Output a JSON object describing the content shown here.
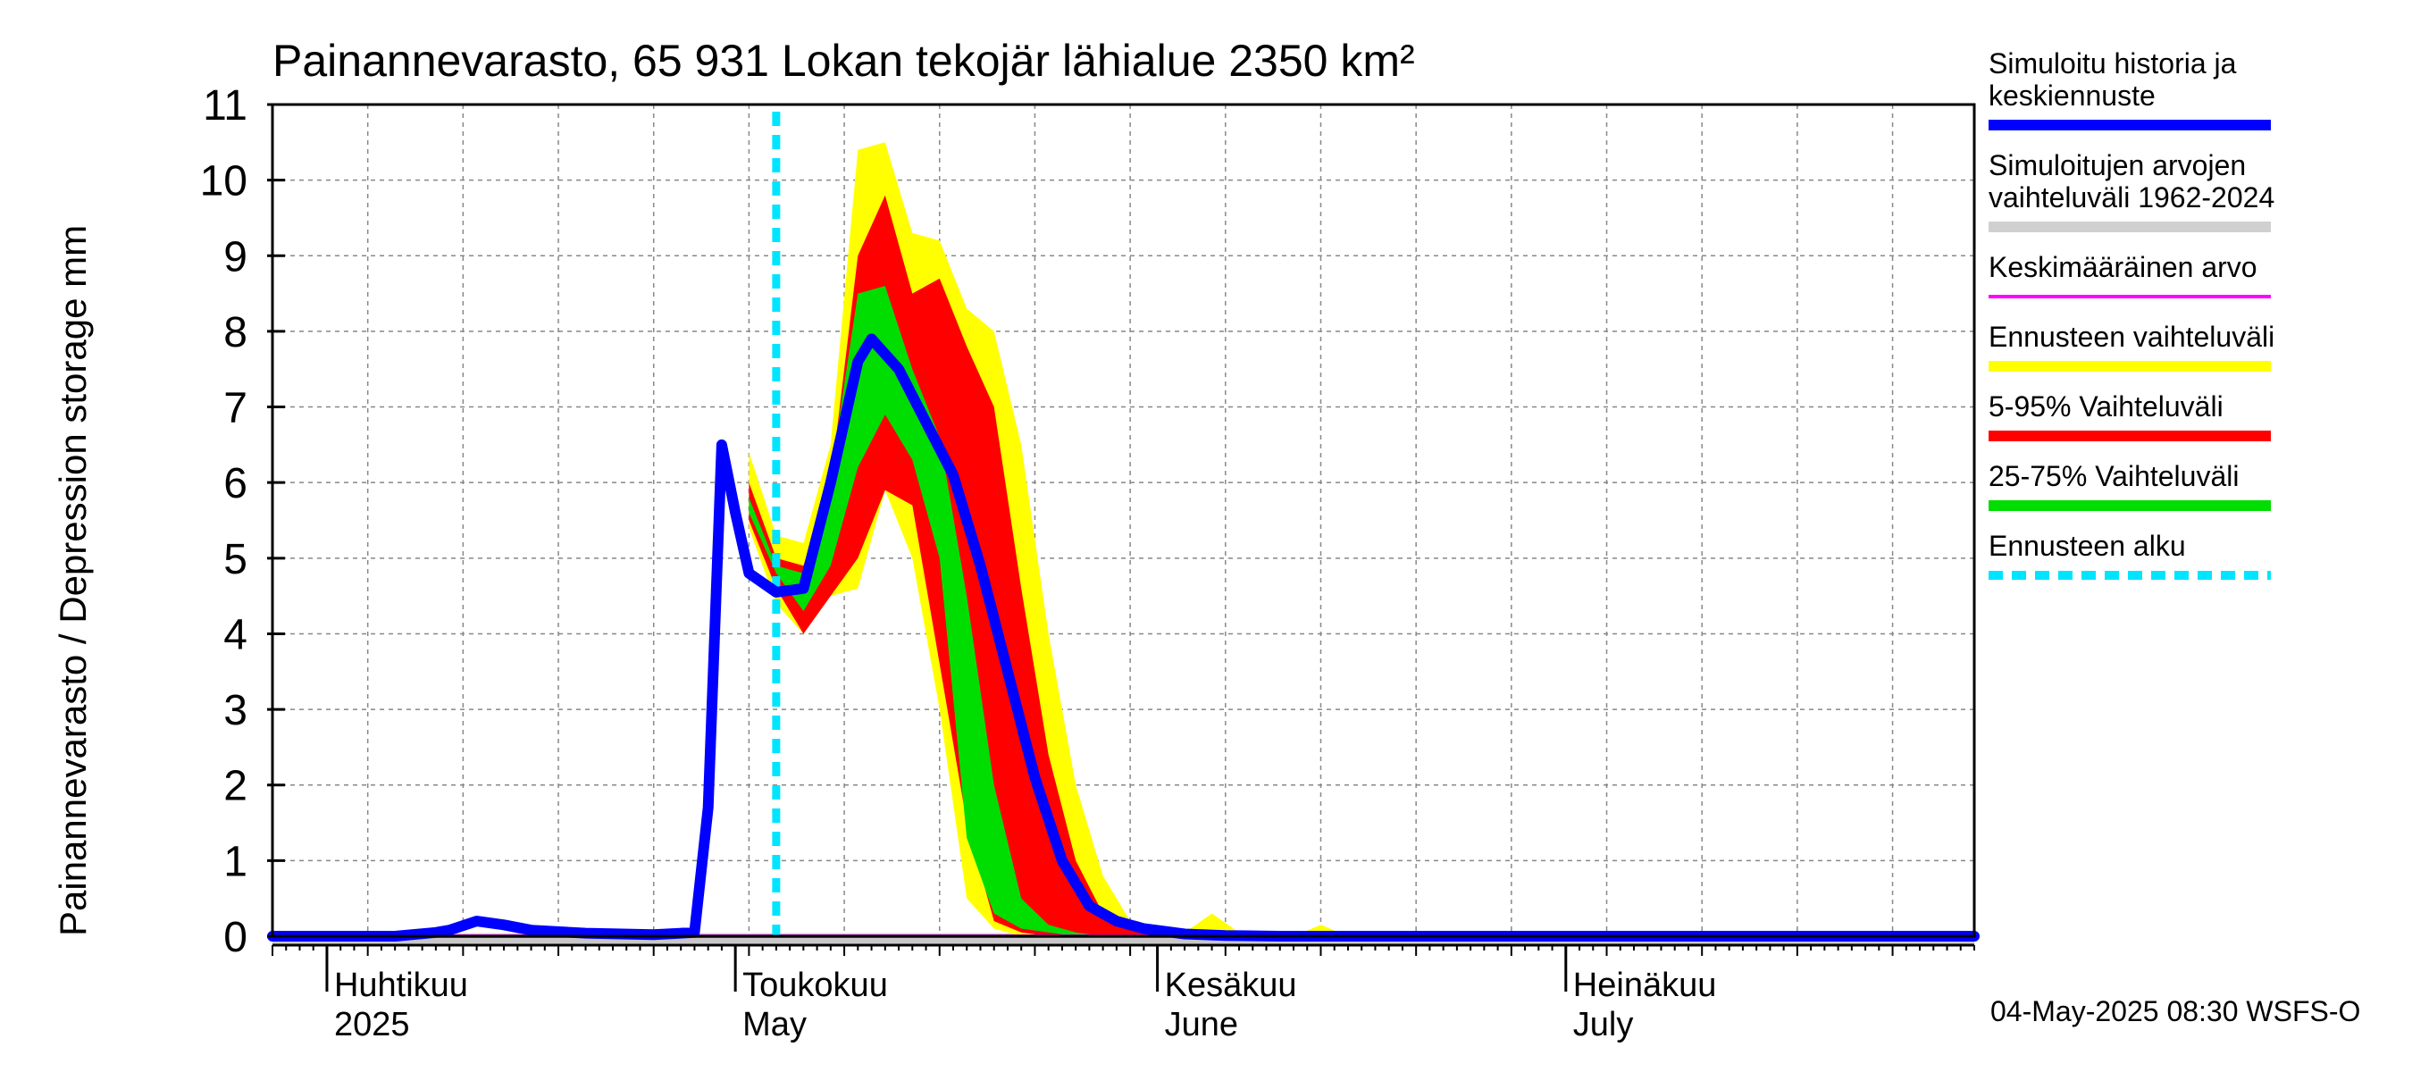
{
  "chart_data": {
    "type": "area",
    "title": "Painannevarasto, 65 931 Lokan tekojär lähialue 2350 km²",
    "ylabel": "Painannevarasto / Depression storage    mm",
    "ylim": [
      0,
      11
    ],
    "yticks": [
      0,
      1,
      2,
      3,
      4,
      5,
      6,
      7,
      8,
      9,
      10,
      11
    ],
    "xlim": [
      "2025-03-28",
      "2025-07-31"
    ],
    "grid": true,
    "months": [
      {
        "date": "2025-04-01",
        "fi": "Huhtikuu",
        "en": "2025"
      },
      {
        "date": "2025-05-01",
        "fi": "Toukokuu",
        "en": "May"
      },
      {
        "date": "2025-06-01",
        "fi": "Kesäkuu",
        "en": "June"
      },
      {
        "date": "2025-07-01",
        "fi": "Heinäkuu",
        "en": "July"
      }
    ],
    "forecast_start": "2025-05-04",
    "mean_value": 0.0,
    "envelope_x": [
      "2025-05-02",
      "2025-05-04",
      "2025-05-06",
      "2025-05-08",
      "2025-05-10",
      "2025-05-12",
      "2025-05-14",
      "2025-05-16",
      "2025-05-18",
      "2025-05-20",
      "2025-05-22",
      "2025-05-24",
      "2025-05-26",
      "2025-05-28",
      "2025-05-30",
      "2025-06-01",
      "2025-06-03",
      "2025-06-05",
      "2025-06-07",
      "2025-06-09",
      "2025-06-11",
      "2025-06-13",
      "2025-06-15",
      "2025-06-17",
      "2025-06-19",
      "2025-06-21",
      "2025-06-23",
      "2025-06-25",
      "2025-06-27",
      "2025-06-30"
    ],
    "bands": [
      {
        "name": "Ennusteen vaihteluväli",
        "color": "#ffff00",
        "lower": [
          5.4,
          4.4,
          4.0,
          4.5,
          4.6,
          5.9,
          5.0,
          3.0,
          0.5,
          0.1,
          0.0,
          0.0,
          0.0,
          0.0,
          0.0,
          0.0,
          0.0,
          0.0,
          0.0,
          0.0,
          0.0,
          0.0,
          0.0,
          0.0,
          0.0,
          0.0,
          0.0,
          0.0,
          0.0,
          0.0
        ],
        "upper": [
          6.4,
          5.3,
          5.2,
          6.5,
          10.4,
          10.5,
          9.3,
          9.2,
          8.3,
          8.0,
          6.5,
          4.0,
          2.0,
          0.8,
          0.2,
          0.1,
          0.05,
          0.3,
          0.05,
          0.0,
          0.0,
          0.15,
          0.0,
          0.0,
          0.0,
          0.0,
          0.0,
          0.0,
          0.0,
          0.0
        ]
      },
      {
        "name": "5-95% Vaihteluväli",
        "color": "#ff0000",
        "lower": [
          5.5,
          4.6,
          4.0,
          4.5,
          5.0,
          5.9,
          5.7,
          3.6,
          1.5,
          0.2,
          0.05,
          0.0,
          0.0,
          0.0,
          0.0,
          0.0,
          0.0,
          0.0,
          0.0,
          0.0,
          0.0,
          0.0,
          0.0,
          0.0,
          0.0,
          0.0,
          0.0,
          0.0,
          0.0,
          0.0
        ],
        "upper": [
          6.0,
          5.0,
          4.9,
          6.0,
          9.0,
          9.8,
          8.5,
          8.7,
          7.8,
          7.0,
          4.6,
          2.4,
          1.0,
          0.3,
          0.1,
          0.05,
          0.0,
          0.0,
          0.0,
          0.0,
          0.0,
          0.0,
          0.0,
          0.0,
          0.0,
          0.0,
          0.0,
          0.0,
          0.0,
          0.0
        ]
      },
      {
        "name": "25-75% Vaihteluväli",
        "color": "#00dd00",
        "lower": [
          5.6,
          4.8,
          4.3,
          4.9,
          6.2,
          6.9,
          6.3,
          5.0,
          1.3,
          0.3,
          0.1,
          0.05,
          0.0,
          0.0,
          0.0,
          0.0,
          0.0,
          0.0,
          0.0,
          0.0,
          0.0,
          0.0,
          0.0,
          0.0,
          0.0,
          0.0,
          0.0,
          0.0,
          0.0,
          0.0
        ],
        "upper": [
          5.8,
          4.9,
          4.8,
          6.1,
          8.5,
          8.6,
          7.5,
          6.6,
          4.5,
          2.0,
          0.5,
          0.15,
          0.05,
          0.0,
          0.0,
          0.0,
          0.0,
          0.0,
          0.0,
          0.0,
          0.0,
          0.0,
          0.0,
          0.0,
          0.0,
          0.0,
          0.0,
          0.0,
          0.0,
          0.0
        ]
      }
    ],
    "series": [
      {
        "name": "Simuloitu historia ja keskiennuste",
        "color": "#0000ff",
        "x": [
          "2025-03-28",
          "2025-04-02",
          "2025-04-06",
          "2025-04-09",
          "2025-04-10",
          "2025-04-12",
          "2025-04-14",
          "2025-04-16",
          "2025-04-20",
          "2025-04-25",
          "2025-04-28",
          "2025-04-29",
          "2025-04-30",
          "2025-05-01",
          "2025-05-02",
          "2025-05-04",
          "2025-05-06",
          "2025-05-08",
          "2025-05-10",
          "2025-05-11",
          "2025-05-13",
          "2025-05-15",
          "2025-05-17",
          "2025-05-19",
          "2025-05-21",
          "2025-05-23",
          "2025-05-25",
          "2025-05-27",
          "2025-05-29",
          "2025-05-31",
          "2025-06-03",
          "2025-06-06",
          "2025-06-10",
          "2025-06-20",
          "2025-07-31"
        ],
        "y": [
          0.0,
          0.0,
          0.0,
          0.05,
          0.08,
          0.2,
          0.15,
          0.08,
          0.04,
          0.02,
          0.05,
          1.7,
          6.5,
          5.6,
          4.8,
          4.55,
          4.6,
          6.0,
          7.6,
          7.9,
          7.5,
          6.8,
          6.1,
          4.9,
          3.5,
          2.1,
          1.0,
          0.4,
          0.2,
          0.1,
          0.03,
          0.01,
          0.0,
          0.0,
          0.0
        ]
      }
    ],
    "legend": [
      {
        "label": "Simuloitu historia ja keskiennuste",
        "color": "#0000ff",
        "style": "thick"
      },
      {
        "label": "Simuloitujen arvojen vaihteluväli 1962-2024",
        "color": "#d0d0d0",
        "style": "thick"
      },
      {
        "label": "Keskimääräinen arvo",
        "color": "#ff00ff",
        "style": "thin"
      },
      {
        "label": "Ennusteen vaihteluväli",
        "color": "#ffff00",
        "style": "thick"
      },
      {
        "label": "5-95% Vaihteluväli",
        "color": "#ff0000",
        "style": "thick"
      },
      {
        "label": "25-75% Vaihteluväli",
        "color": "#00dd00",
        "style": "thick"
      },
      {
        "label": "Ennusteen alku",
        "color": "#00e5ff",
        "style": "dashed"
      }
    ],
    "legend_placement": "right",
    "footer": "04-May-2025 08:30 WSFS-O"
  }
}
